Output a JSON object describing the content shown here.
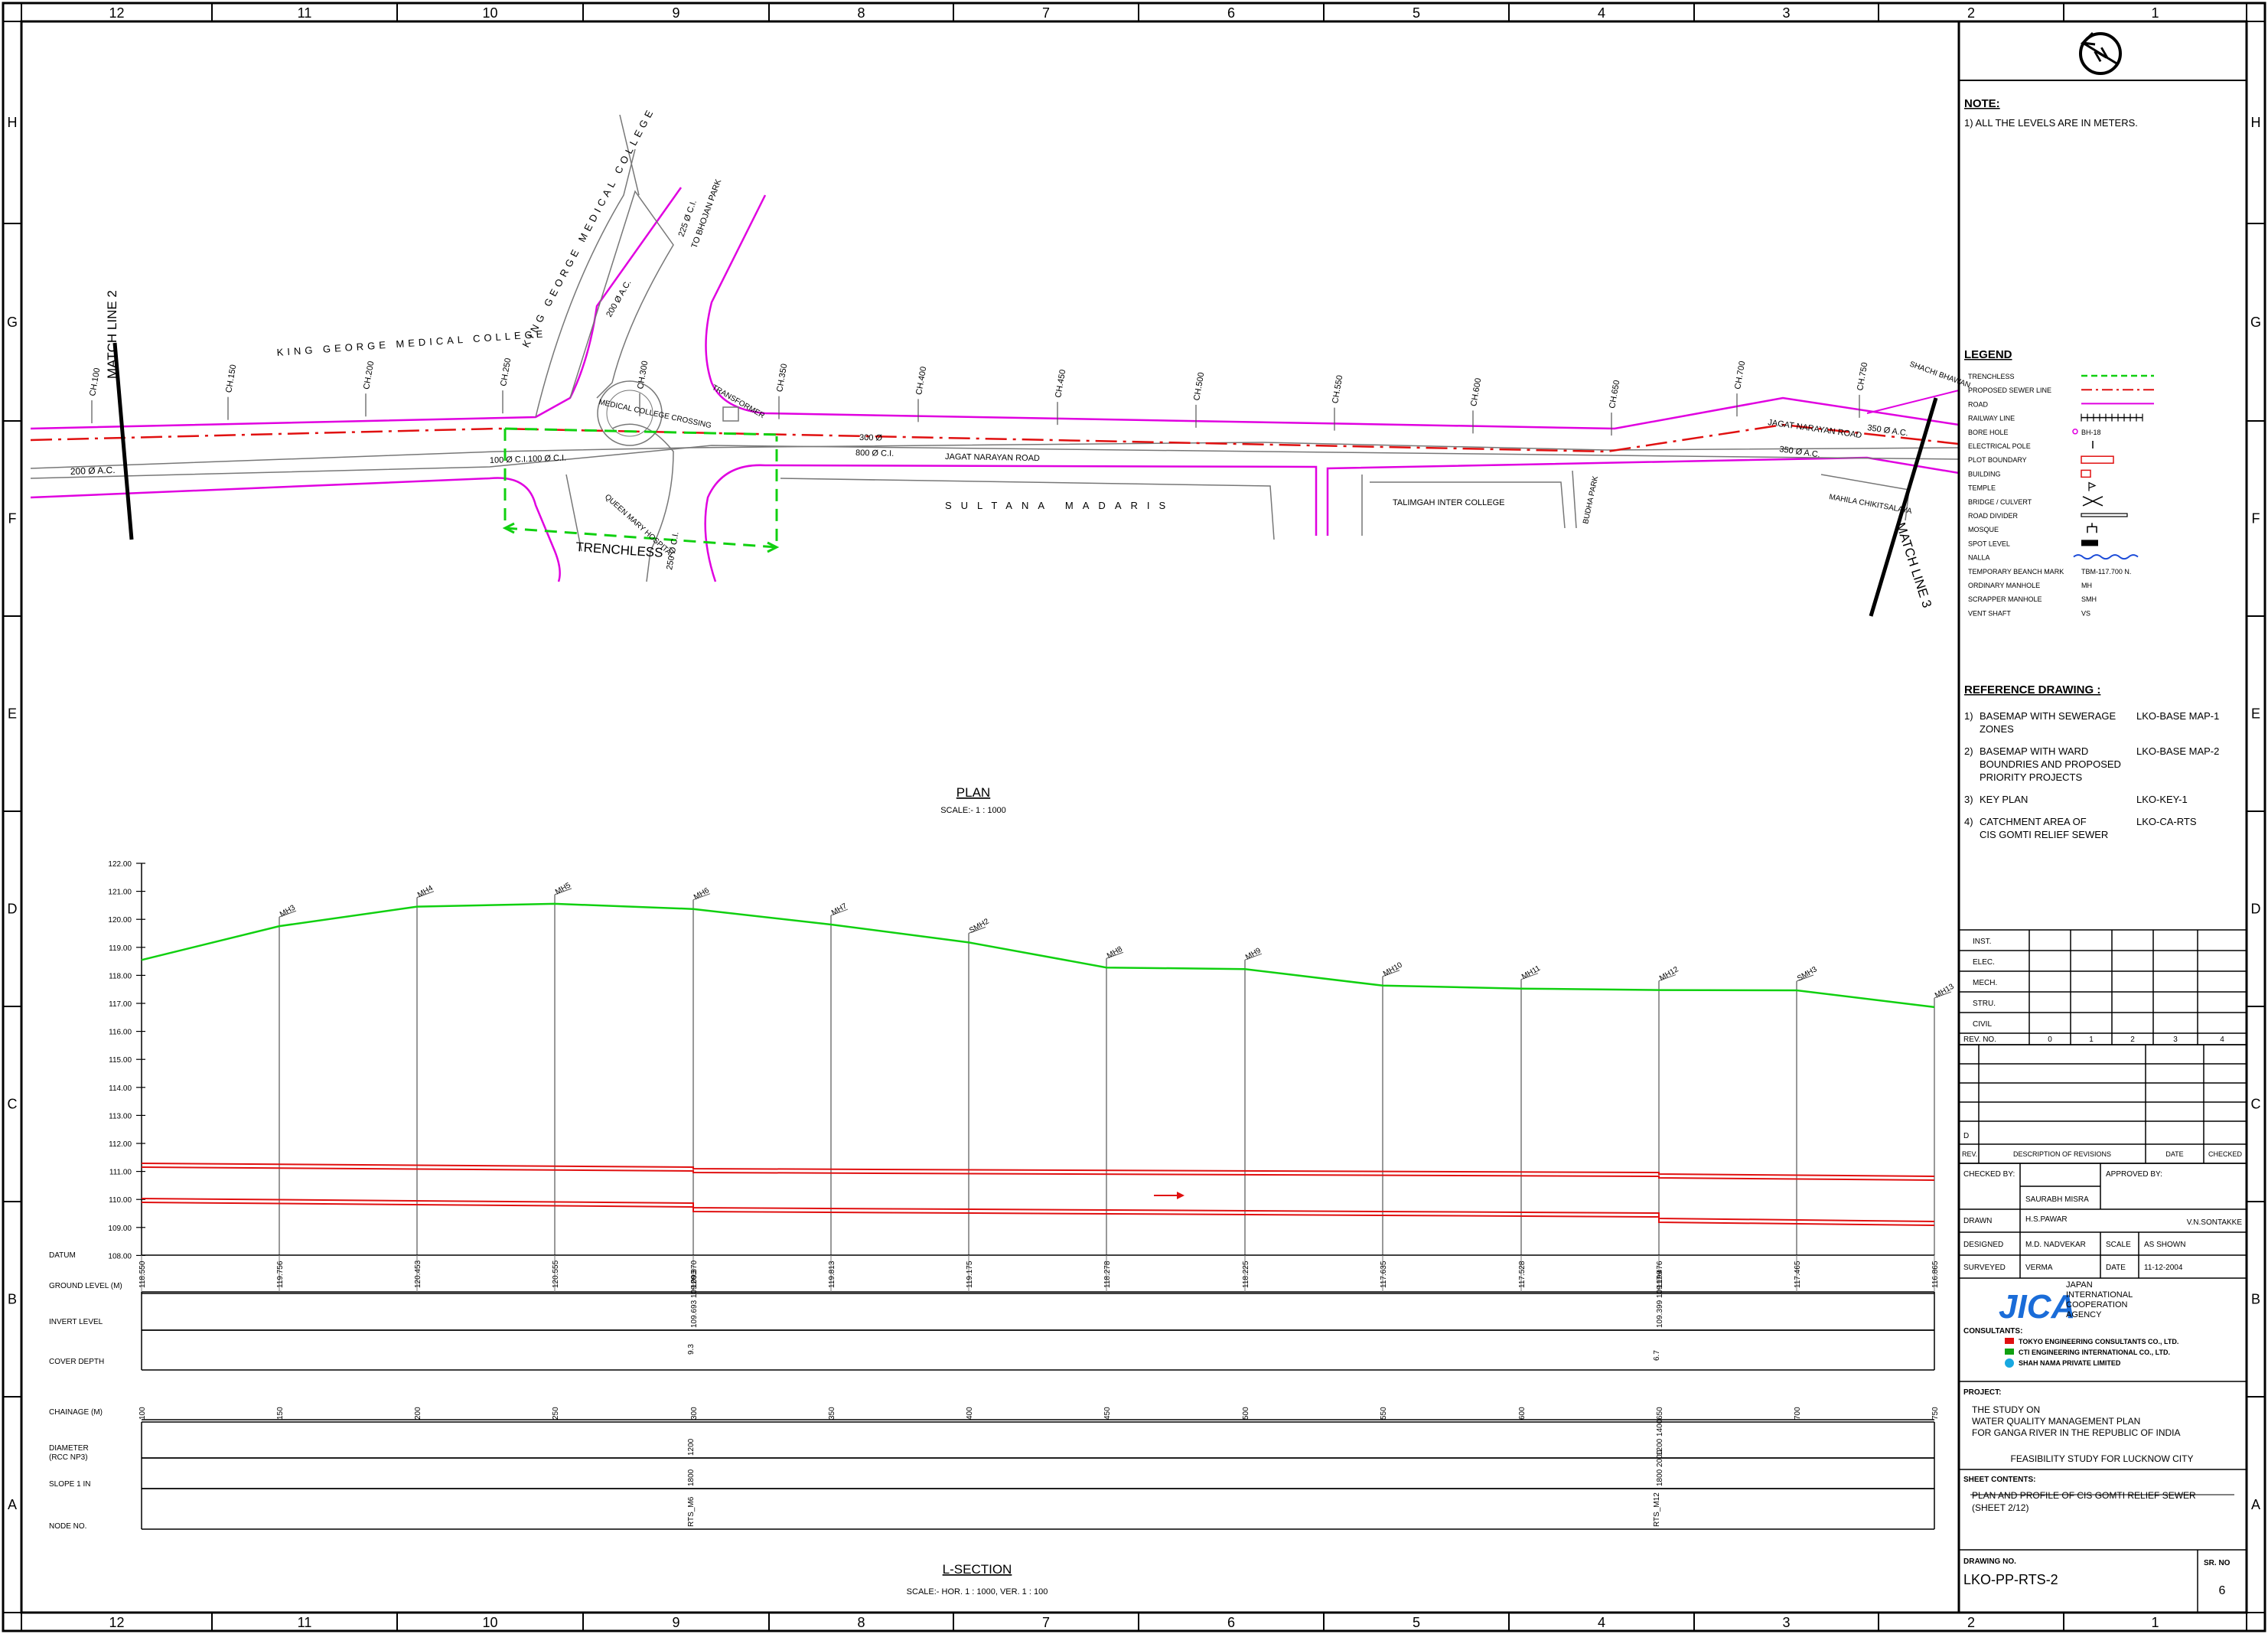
{
  "grid": {
    "cols": [
      "12",
      "11",
      "10",
      "9",
      "8",
      "7",
      "6",
      "5",
      "4",
      "3",
      "2",
      "1"
    ],
    "rows": [
      "H",
      "G",
      "F",
      "E",
      "D",
      "C",
      "B",
      "A"
    ]
  },
  "plan": {
    "title": "PLAN",
    "scale": "SCALE:- 1 : 1000",
    "match_line_left": "MATCH LINE 2",
    "match_line_right": "MATCH LINE 3",
    "kgmc_road": "KING GEORGE MEDICAL COLLEGE",
    "kgmc_label": "KING GEORGE MEDICAL COLLEGE",
    "chainages": [
      "CH.100",
      "CH.150",
      "CH.200",
      "CH.250",
      "CH.300",
      "CH.350",
      "CH.400",
      "CH.450",
      "CH.500",
      "CH.550",
      "CH.600",
      "CH.650",
      "CH.700",
      "CH.750"
    ],
    "pipe_200_ac": "200 Ø A.C.",
    "pipe_200_ac2": "200 Ø A.C.",
    "pipe_225": "225 Ø C.I.",
    "to_bhojan": "TO BHOJAN PARK",
    "pipe_100": "100 Ø C.I.100 Ø C.I.",
    "pipe_300": "300 Ø",
    "pipe_800": "800 Ø C.I.",
    "jagat_road": "JAGAT NARAYAN ROAD",
    "jagat_road2": "JAGAT NARAYAN ROAD",
    "pipe_350": "350 Ø A.C.",
    "pipe_350b": "350 Ø A.C.",
    "crossing": "MEDICAL COLLEGE CROSSING",
    "queen_mary": "QUEEN MARY HOSPITAL",
    "transformer": "TRANSFORMER",
    "pipe_250": "250 Ø C.I.",
    "trenchless": "TRENCHLESS",
    "sultana": "SULTANA MADARIS",
    "talimgah": "TALIMGAH INTER COLLEGE",
    "budha_park": "BUDHA PARK",
    "mahila": "MAHILA CHIKITSALAYA",
    "shachi": "SHACHI BHAWAN"
  },
  "lsection": {
    "title": "L-SECTION",
    "scale": "SCALE:- HOR. 1 : 1000, VER. 1 : 100",
    "y_ticks": [
      "122.00",
      "121.00",
      "120.00",
      "119.00",
      "118.00",
      "117.00",
      "116.00",
      "115.00",
      "114.00",
      "113.00",
      "112.00",
      "111.00",
      "110.00",
      "109.00",
      "108.00"
    ],
    "manholes": [
      "MH3",
      "MH4",
      "MH5",
      "MH6",
      "MH7",
      "SMH2",
      "MH8",
      "MH9",
      "MH10",
      "MH11",
      "MH12",
      "SMH3",
      "MH13"
    ],
    "datum": "DATUM",
    "row_labels": [
      "GROUND LEVEL (M)",
      "INVERT LEVEL",
      "COVER DEPTH",
      "CHAINAGE (M)",
      "DIAMETER (RCC NP3)",
      "SLOPE 1 IN",
      "NODE NO."
    ],
    "ground_levels": [
      "118.550",
      "119.756",
      "120.453",
      "120.555",
      "120.370",
      "119.813",
      "119.175",
      "118.278",
      "118.225",
      "117.635",
      "117.528",
      "117.476",
      "117.465",
      "116.865"
    ],
    "invert_6": "109.693 109.093",
    "invert_12": "109.399 109.199",
    "cover_6": "9.3",
    "cover_12": "6.7",
    "chainage_vals": [
      "100",
      "150",
      "200",
      "250",
      "300",
      "350",
      "400",
      "450",
      "500",
      "550",
      "600",
      "650",
      "700",
      "750"
    ],
    "dia_6": "1200",
    "dia_12": "1200 1400",
    "slope_6": "1800",
    "slope_12": "1800 2000",
    "node_6": "RTS_M6",
    "node_12": "RTS_M12"
  },
  "title_block": {
    "north": "N",
    "note_title": "NOTE:",
    "note_1": "1) ALL THE LEVELS ARE IN METERS.",
    "legend_title": "LEGEND",
    "legend": [
      {
        "label": "TRENCHLESS",
        "symbol": ""
      },
      {
        "label": "PROPOSED SEWER LINE",
        "symbol": ""
      },
      {
        "label": "ROAD",
        "symbol": ""
      },
      {
        "label": "RAILWAY LINE",
        "symbol": ""
      },
      {
        "label": "BORE HOLE",
        "symbol": "BH-18"
      },
      {
        "label": "ELECTRICAL POLE",
        "symbol": ""
      },
      {
        "label": "PLOT BOUNDARY",
        "symbol": ""
      },
      {
        "label": "BUILDING",
        "symbol": ""
      },
      {
        "label": "TEMPLE",
        "symbol": ""
      },
      {
        "label": "BRIDGE / CULVERT",
        "symbol": ""
      },
      {
        "label": "ROAD DIVIDER",
        "symbol": ""
      },
      {
        "label": "MOSQUE",
        "symbol": ""
      },
      {
        "label": "SPOT LEVEL",
        "symbol": ""
      },
      {
        "label": "NALLA",
        "symbol": ""
      },
      {
        "label": "TEMPORARY BEANCH MARK",
        "symbol": "TBM-117.700 N."
      },
      {
        "label": "ORDINARY MANHOLE",
        "symbol": "MH"
      },
      {
        "label": "SCRAPPER MANHOLE",
        "symbol": "SMH"
      },
      {
        "label": "VENT SHAFT",
        "symbol": "VS"
      }
    ],
    "ref_title": "REFERENCE DRAWING :",
    "refs": [
      {
        "num": "1)",
        "text": [
          "BASEMAP WITH SEWERAGE",
          "ZONES"
        ],
        "code": "LKO-BASE MAP-1"
      },
      {
        "num": "2)",
        "text": [
          "BASEMAP WITH WARD",
          "BOUNDRIES AND PROPOSED",
          "PRIORITY PROJECTS"
        ],
        "code": "LKO-BASE MAP-2"
      },
      {
        "num": "3)",
        "text": [
          "KEY PLAN"
        ],
        "code": "LKO-KEY-1"
      },
      {
        "num": "4)",
        "text": [
          "CATCHMENT AREA OF",
          "CIS GOMTI RELIEF SEWER"
        ],
        "code": "LKO-CA-RTS"
      }
    ],
    "disciplines": [
      "INST.",
      "ELEC.",
      "MECH.",
      "STRU.",
      "CIVIL"
    ],
    "rev_no": "REV. NO.",
    "rev_cols": [
      "0",
      "1",
      "2",
      "3",
      "4"
    ],
    "rev_d": "D",
    "rev_head": [
      "REV.",
      "DESCRIPTION OF REVISIONS",
      "DATE",
      "CHECKED"
    ],
    "checked_by": "CHECKED BY:",
    "checked_name": "SAURABH MISRA",
    "approved_by": "APPROVED BY:",
    "approved_name": "V.N.SONTAKKE",
    "drawn": "DRAWN",
    "drawn_name": "H.S.PAWAR",
    "designed": "DESIGNED",
    "designed_name": "M.D. NADVEKAR",
    "scale_lbl": "SCALE",
    "scale_val": "AS SHOWN",
    "surveyed": "SURVEYED",
    "surveyed_name": "VERMA",
    "date_lbl": "DATE",
    "date_val": "11-12-2004",
    "jica_logo": "JICA",
    "jica_name": [
      "JAPAN",
      "INTERNATIONAL",
      "COOPERATION",
      "AGENCY"
    ],
    "consultants": "CONSULTANTS:",
    "cons_list": [
      "TOKYO ENGINEERING CONSULTANTS CO., LTD.",
      "CTI ENGINEERING INTERNATIONAL CO., LTD.",
      "SHAH NAMA PRIVATE LIMITED"
    ],
    "project_lbl": "PROJECT:",
    "project_lines": [
      "THE STUDY ON",
      "WATER QUALITY MANAGEMENT PLAN",
      "FOR GANGA RIVER IN THE REPUBLIC OF INDIA"
    ],
    "feasibility": "FEASIBILITY STUDY FOR LUCKNOW CITY",
    "sheet_lbl": "SHEET CONTENTS:",
    "sheet_lines": [
      "PLAN AND PROFILE OF CIS GOMTI RELIEF SEWER",
      "(SHEET 2/12)"
    ],
    "drawing_no_lbl": "DRAWING NO.",
    "drawing_no": "LKO-PP-RTS-2",
    "sr_no_lbl": "SR. NO",
    "sr_no": "6"
  }
}
